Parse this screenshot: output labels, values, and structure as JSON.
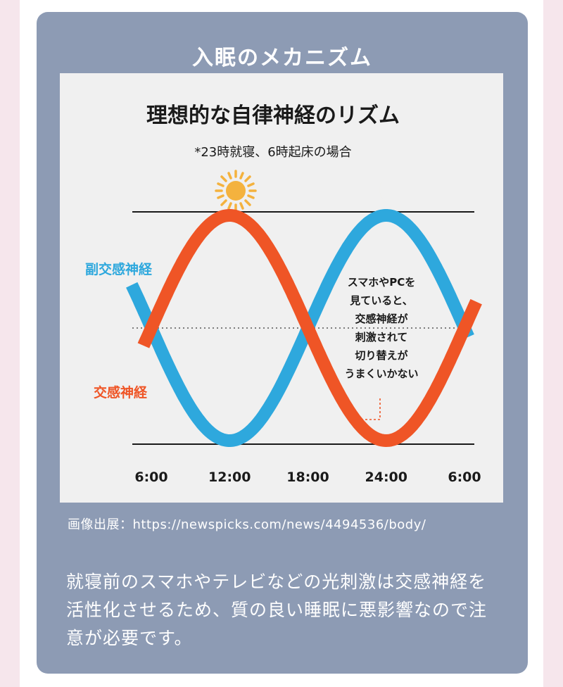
{
  "card": {
    "title": "入眠のメカニズム",
    "credit": "画像出展：https://newspicks.com/news/4494536/body/",
    "body": "就寝前のスマホやテレビなどの光刺激は交感神経を活性化させるため、質の良い睡眠に悪影響なので注意が必要です。"
  },
  "colors": {
    "card_bg": "#8d9bb4",
    "parasympathetic": "#2ea8dd",
    "sympathetic": "#ef5526",
    "sun": "#f4b23e",
    "moon": "#f4b23e"
  },
  "icons": {
    "sun": "sun-icon",
    "moon": "moon-icon"
  },
  "chart_data": {
    "type": "line",
    "title": "理想的な自律神経のリズム",
    "subtitle": "*23時就寝、6時起床の場合",
    "x_ticks": [
      "6:00",
      "12:00",
      "18:00",
      "24:00",
      "6:00"
    ],
    "xlabel": "",
    "ylabel": "",
    "grid": false,
    "series": [
      {
        "name": "副交感神経",
        "x": [
          "6:00",
          "12:00",
          "18:00",
          "24:00",
          "6:00"
        ],
        "values": [
          0,
          -1,
          0,
          1,
          0
        ]
      },
      {
        "name": "交感神経",
        "x": [
          "6:00",
          "12:00",
          "18:00",
          "24:00",
          "6:00"
        ],
        "values": [
          0,
          1,
          0,
          -1,
          0
        ]
      }
    ],
    "annotation": "スマホやPCを\n見ていると、\n交感神経が\n刺激されて\n切り替えが\nうまくいかない"
  }
}
